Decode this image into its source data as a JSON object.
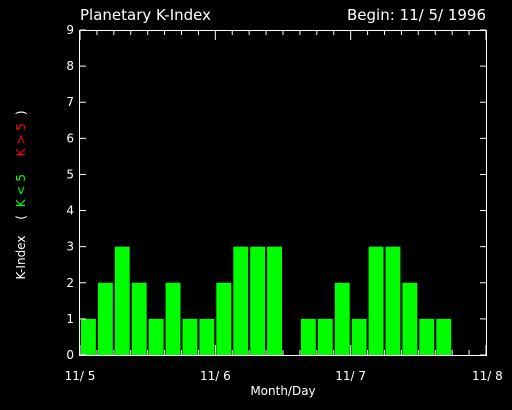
{
  "chart_data": {
    "type": "bar",
    "title": "Planetary K-Index",
    "subtitle": "Begin: 11/ 5/ 1996",
    "xlabel": "Month/Day",
    "ylabel_parts": {
      "main": "K-Index",
      "open": "(",
      "green": "K < 5",
      "red": "K > 5",
      "close": ")"
    },
    "ylim": [
      0,
      9
    ],
    "yticks": [
      "0",
      "1",
      "2",
      "3",
      "4",
      "5",
      "6",
      "7",
      "8",
      "9"
    ],
    "xticks": [
      "11/ 5",
      "11/ 6",
      "11/ 7",
      "11/ 8"
    ],
    "bars_per_day": 8,
    "values": [
      1,
      2,
      3,
      2,
      1,
      2,
      1,
      1,
      2,
      3,
      3,
      3,
      0,
      1,
      1,
      2,
      1,
      3,
      3,
      2,
      1,
      1,
      0,
      0
    ],
    "threshold": 5,
    "colors": {
      "low": "#00ff00",
      "high": "#ff0000",
      "axis": "#ffffff",
      "background": "#000000"
    },
    "grid": false
  }
}
